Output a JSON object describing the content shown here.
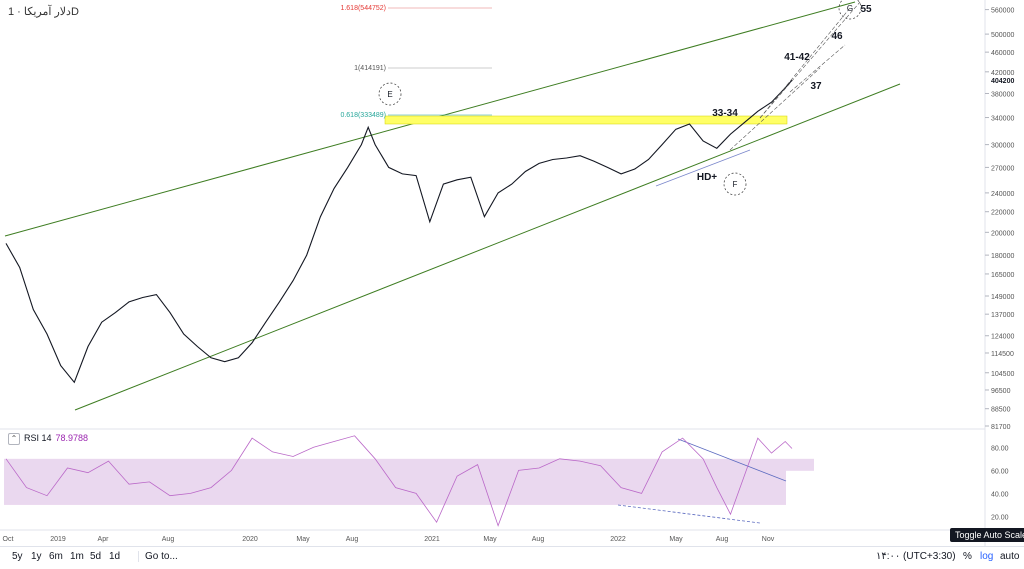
{
  "header": {
    "symbol": "دلار آمریکا · 1D"
  },
  "indicator": {
    "name": "RSI 14",
    "value": "78.9788"
  },
  "bottom_bar": {
    "ranges": [
      "5y",
      "1y",
      "6m",
      "1m",
      "5d",
      "1d"
    ],
    "goto": "Go to...",
    "timezone": "۱۴:۰۰ (UTC+3:30)",
    "percent": "%",
    "log": "log",
    "auto": "auto",
    "tooltip": "Toggle Auto Scale"
  },
  "chart_data": [
    {
      "type": "line",
      "scale": "log",
      "x_ticks": [
        "Oct",
        "2019",
        "Apr",
        "Aug",
        "2020",
        "May",
        "Aug",
        "2021",
        "May",
        "Aug",
        "2022",
        "May",
        "Aug",
        "Nov"
      ],
      "y_ticks": [
        560000,
        500000,
        460000,
        420000,
        380000,
        340000,
        300000,
        270000,
        240000,
        220000,
        200000,
        180000,
        165000,
        149000,
        137000,
        124000,
        114500,
        104500,
        96500,
        88500,
        81700
      ],
      "last_price_label": "404200",
      "series": [
        {
          "values": [
            [
              0,
              190000
            ],
            [
              2,
              170000
            ],
            [
              4,
              140000
            ],
            [
              6,
              125000
            ],
            [
              8,
              108000
            ],
            [
              10,
              100000
            ],
            [
              12,
              118000
            ],
            [
              14,
              132000
            ],
            [
              16,
              138000
            ],
            [
              18,
              145000
            ],
            [
              20,
              148000
            ],
            [
              22,
              150000
            ],
            [
              24,
              138000
            ],
            [
              26,
              125000
            ],
            [
              28,
              118000
            ],
            [
              30,
              112000
            ],
            [
              32,
              110000
            ],
            [
              34,
              112000
            ],
            [
              36,
              120000
            ],
            [
              38,
              132000
            ],
            [
              40,
              145000
            ],
            [
              42,
              160000
            ],
            [
              44,
              180000
            ],
            [
              46,
              215000
            ],
            [
              48,
              245000
            ],
            [
              50,
              270000
            ],
            [
              52,
              300000
            ],
            [
              53,
              325000
            ],
            [
              54,
              300000
            ],
            [
              56,
              270000
            ],
            [
              58,
              262000
            ],
            [
              60,
              260000
            ],
            [
              62,
              210000
            ],
            [
              64,
              250000
            ],
            [
              66,
              255000
            ],
            [
              68,
              258000
            ],
            [
              70,
              215000
            ],
            [
              72,
              240000
            ],
            [
              74,
              250000
            ],
            [
              76,
              265000
            ],
            [
              78,
              275000
            ],
            [
              80,
              280000
            ],
            [
              82,
              282000
            ],
            [
              84,
              285000
            ],
            [
              86,
              278000
            ],
            [
              88,
              270000
            ],
            [
              90,
              262000
            ],
            [
              92,
              268000
            ],
            [
              94,
              280000
            ],
            [
              96,
              300000
            ],
            [
              98,
              322000
            ],
            [
              100,
              330000
            ],
            [
              102,
              305000
            ],
            [
              104,
              295000
            ],
            [
              106,
              315000
            ],
            [
              108,
              332000
            ],
            [
              110,
              350000
            ],
            [
              112,
              365000
            ],
            [
              114,
              390000
            ],
            [
              115,
              404200
            ]
          ]
        }
      ],
      "annotations": [
        "1.618(544752)",
        "1(414191)",
        "0.618(333489)",
        "E",
        "F",
        "G",
        "55",
        "46",
        "41-42",
        "37",
        "33-34",
        "HD+"
      ]
    },
    {
      "type": "line",
      "title": "RSI 14",
      "y_ticks": [
        80,
        60,
        40,
        20
      ],
      "ylim": [
        10,
        95
      ],
      "band": [
        30,
        70
      ],
      "series": [
        {
          "values": [
            [
              0,
              70
            ],
            [
              3,
              45
            ],
            [
              6,
              38
            ],
            [
              9,
              62
            ],
            [
              12,
              58
            ],
            [
              15,
              68
            ],
            [
              18,
              48
            ],
            [
              21,
              50
            ],
            [
              24,
              38
            ],
            [
              27,
              40
            ],
            [
              30,
              45
            ],
            [
              33,
              60
            ],
            [
              36,
              88
            ],
            [
              39,
              76
            ],
            [
              42,
              72
            ],
            [
              45,
              80
            ],
            [
              48,
              85
            ],
            [
              51,
              90
            ],
            [
              54,
              70
            ],
            [
              57,
              45
            ],
            [
              60,
              40
            ],
            [
              63,
              15
            ],
            [
              66,
              55
            ],
            [
              69,
              65
            ],
            [
              72,
              12
            ],
            [
              75,
              60
            ],
            [
              78,
              62
            ],
            [
              81,
              70
            ],
            [
              84,
              68
            ],
            [
              87,
              64
            ],
            [
              90,
              45
            ],
            [
              93,
              40
            ],
            [
              96,
              76
            ],
            [
              99,
              88
            ],
            [
              102,
              70
            ],
            [
              104,
              45
            ],
            [
              106,
              22
            ],
            [
              108,
              55
            ],
            [
              110,
              88
            ],
            [
              112,
              75
            ],
            [
              114,
              85
            ],
            [
              115,
              78.98
            ]
          ]
        }
      ]
    }
  ]
}
